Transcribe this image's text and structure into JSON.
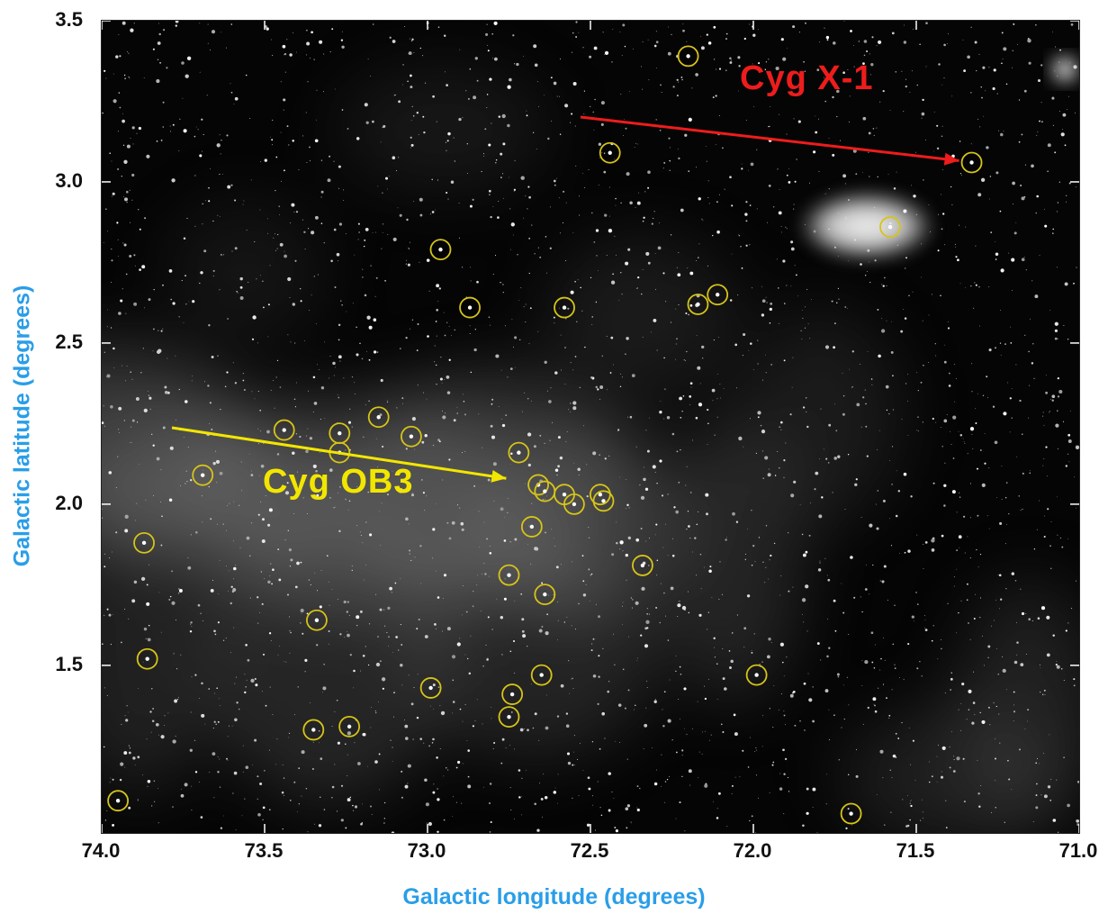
{
  "figure": {
    "xlabel": "Galactic longitude (degrees)",
    "ylabel": "Galactic latitude (degrees)",
    "x_ticks": [
      "74.0",
      "73.5",
      "73.0",
      "72.5",
      "72.0",
      "71.5",
      "71.0"
    ],
    "y_ticks": [
      "3.5",
      "3.0",
      "2.5",
      "2.0",
      "1.5"
    ],
    "xlim": [
      74.0,
      71.0
    ],
    "ylim": [
      0.98,
      3.5
    ],
    "annotations": [
      {
        "text": "Cyg X-1",
        "color": "#ee1c1c",
        "target": {
          "l": 71.33,
          "b": 3.06
        }
      },
      {
        "text": "Cyg OB3",
        "color": "#f2e600",
        "target": {
          "l": 72.72,
          "b": 2.08
        }
      }
    ],
    "marker_color": "#d7c418",
    "circled_stars": [
      {
        "l": 73.95,
        "b": 1.08
      },
      {
        "l": 73.86,
        "b": 1.52
      },
      {
        "l": 73.87,
        "b": 1.88
      },
      {
        "l": 73.69,
        "b": 2.09
      },
      {
        "l": 73.44,
        "b": 2.23
      },
      {
        "l": 73.27,
        "b": 2.22
      },
      {
        "l": 73.27,
        "b": 2.16
      },
      {
        "l": 73.15,
        "b": 2.27
      },
      {
        "l": 73.05,
        "b": 2.21
      },
      {
        "l": 72.96,
        "b": 2.79
      },
      {
        "l": 72.87,
        "b": 2.61
      },
      {
        "l": 72.72,
        "b": 2.16
      },
      {
        "l": 72.66,
        "b": 2.06
      },
      {
        "l": 72.64,
        "b": 2.04
      },
      {
        "l": 72.58,
        "b": 2.03
      },
      {
        "l": 72.55,
        "b": 2.0
      },
      {
        "l": 72.47,
        "b": 2.03
      },
      {
        "l": 72.46,
        "b": 2.01
      },
      {
        "l": 72.58,
        "b": 2.61
      },
      {
        "l": 72.44,
        "b": 3.09
      },
      {
        "l": 72.68,
        "b": 1.93
      },
      {
        "l": 72.75,
        "b": 1.78
      },
      {
        "l": 72.64,
        "b": 1.72
      },
      {
        "l": 72.34,
        "b": 1.81
      },
      {
        "l": 72.65,
        "b": 1.47
      },
      {
        "l": 72.74,
        "b": 1.41
      },
      {
        "l": 72.75,
        "b": 1.34
      },
      {
        "l": 72.99,
        "b": 1.43
      },
      {
        "l": 73.34,
        "b": 1.64
      },
      {
        "l": 73.35,
        "b": 1.3
      },
      {
        "l": 73.24,
        "b": 1.31
      },
      {
        "l": 72.2,
        "b": 3.39
      },
      {
        "l": 72.17,
        "b": 2.62
      },
      {
        "l": 72.11,
        "b": 2.65
      },
      {
        "l": 71.58,
        "b": 2.86
      },
      {
        "l": 71.33,
        "b": 3.06
      },
      {
        "l": 71.99,
        "b": 1.47
      },
      {
        "l": 71.7,
        "b": 1.04
      }
    ]
  }
}
